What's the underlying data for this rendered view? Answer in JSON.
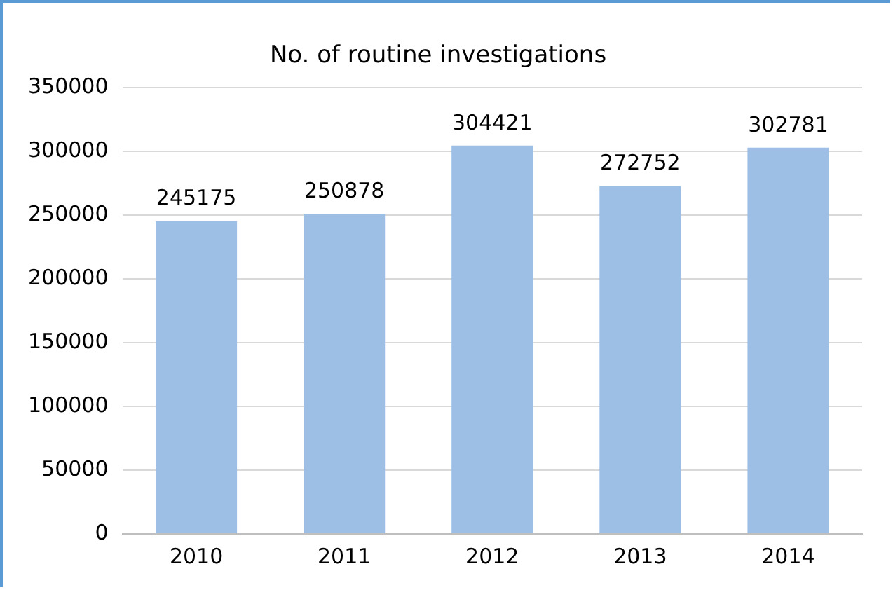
{
  "chart_data": {
    "type": "bar",
    "title": "No. of routine investigations",
    "categories": [
      "2010",
      "2011",
      "2012",
      "2013",
      "2014"
    ],
    "values": [
      245175,
      250878,
      304421,
      272752,
      302781
    ],
    "color": "#9dbfe6",
    "ylim": [
      0,
      350000
    ],
    "yticks": [
      0,
      50000,
      100000,
      150000,
      200000,
      250000,
      300000,
      350000
    ],
    "grid": "y",
    "data_labels": true
  }
}
